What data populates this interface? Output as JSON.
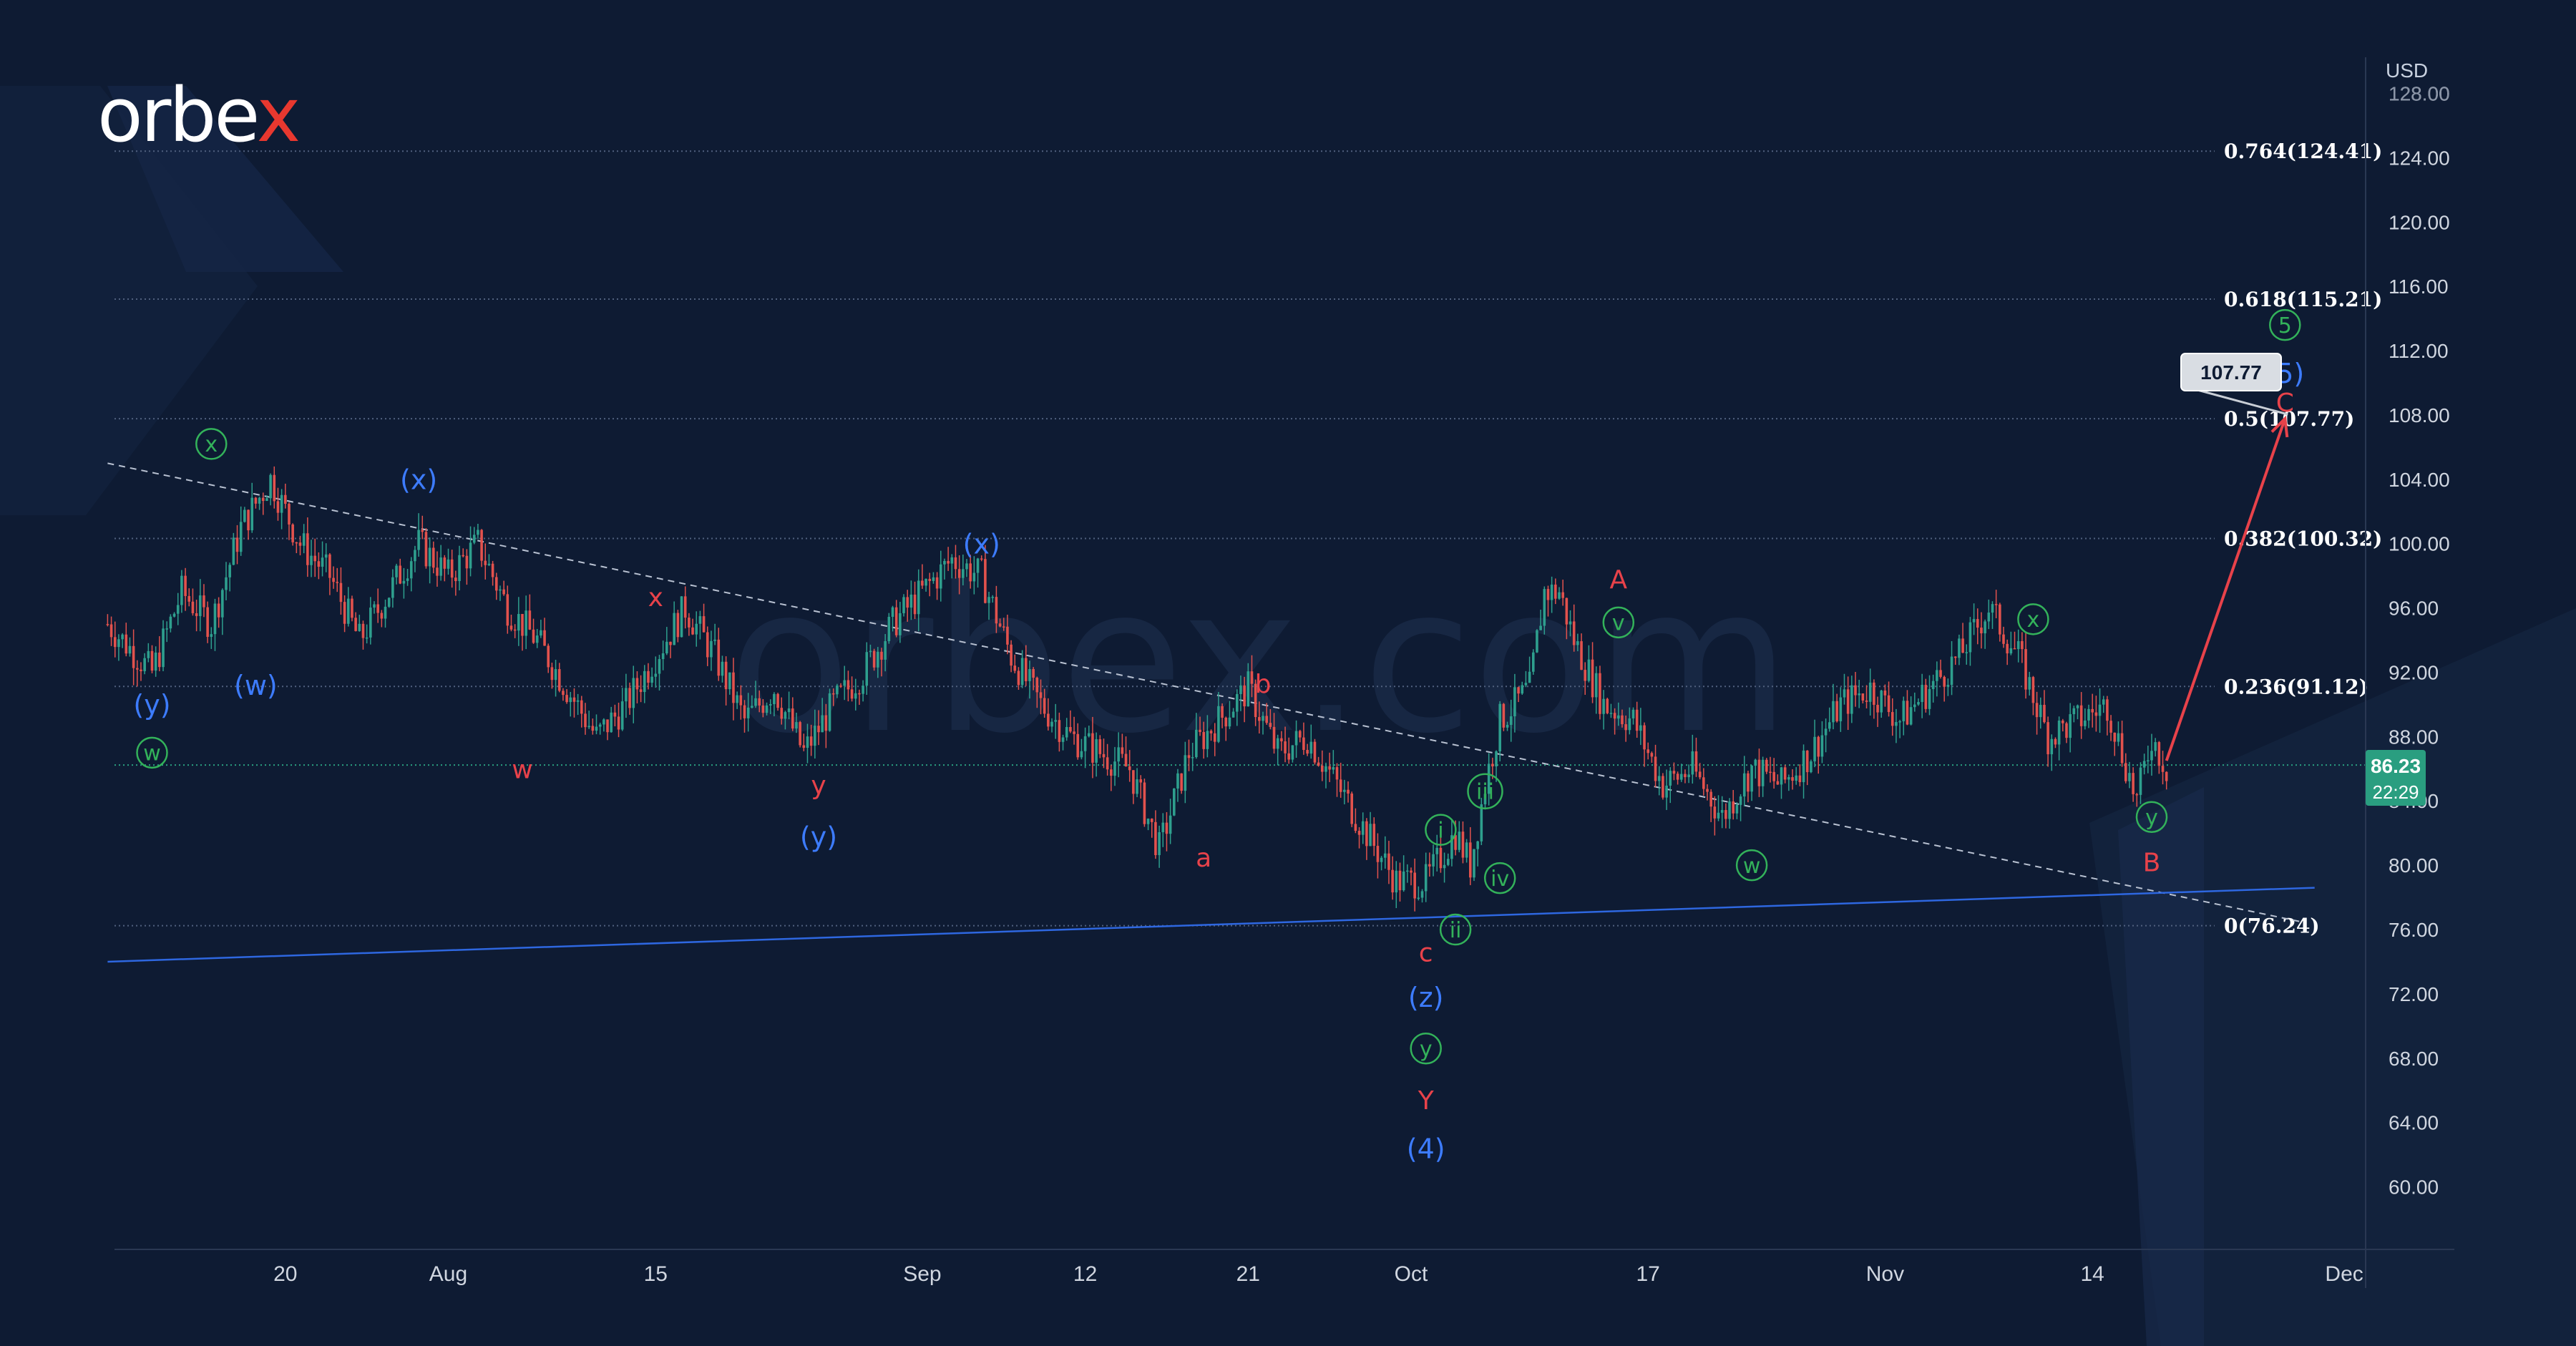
{
  "brand": {
    "name_main": "orbe",
    "name_accent": "x",
    "watermark": "orbex.com"
  },
  "axis": {
    "currency": "USD"
  },
  "price_tag": {
    "price": "86.23",
    "countdown": "22:29"
  },
  "target_tag": "107.77",
  "colors": {
    "background": "#0e1b33",
    "bull_candle": "#2e9f8e",
    "bear_candle": "#e2524d",
    "red_label": "#e8424a",
    "blue_label": "#3d7cff",
    "green_label": "#33b25a",
    "trendline": "#2e67e0",
    "forecast_arrow": "#e8424a",
    "price_tag_bg": "#2a9e80"
  },
  "chart_data": {
    "type": "candlestick",
    "title": "",
    "y_axis_unit": "USD",
    "ylim": [
      57,
      129
    ],
    "xlim_day": [
      0,
      145
    ],
    "y_ticks": [
      "60.00",
      "64.00",
      "68.00",
      "72.00",
      "76.00",
      "80.00",
      "84.00",
      "88.00",
      "92.00",
      "96.00",
      "100.00",
      "104.00",
      "108.00",
      "112.00",
      "116.00",
      "120.00",
      "124.00",
      "128.00"
    ],
    "x_ticks": [
      {
        "label": "20",
        "day": 4
      },
      {
        "label": "Aug",
        "day": 15
      },
      {
        "label": "15",
        "day": 29
      },
      {
        "label": "Sep",
        "day": 47
      },
      {
        "label": "12",
        "day": 58
      },
      {
        "label": "21",
        "day": 69
      },
      {
        "label": "Oct",
        "day": 80
      },
      {
        "label": "17",
        "day": 96
      },
      {
        "label": "Nov",
        "day": 112
      },
      {
        "label": "14",
        "day": 126
      },
      {
        "label": "Dec",
        "day": 143
      }
    ],
    "fib_levels": [
      {
        "label": "0.764(124.41)",
        "value": 124.41
      },
      {
        "label": "0.618(115.21)",
        "value": 115.21
      },
      {
        "label": "0.5(107.77)",
        "value": 107.77
      },
      {
        "label": "0.382(100.32)",
        "value": 100.32
      },
      {
        "label": "0.236(91.12)",
        "value": 91.12
      },
      {
        "label": "0(76.24)",
        "value": 76.24
      }
    ],
    "anchors": [
      [
        -8,
        95
      ],
      [
        -5,
        92
      ],
      [
        -3,
        97
      ],
      [
        -1,
        95
      ],
      [
        1,
        101
      ],
      [
        3,
        104
      ],
      [
        5,
        100
      ],
      [
        7,
        98
      ],
      [
        9,
        94
      ],
      [
        11,
        97
      ],
      [
        13,
        100
      ],
      [
        15,
        98
      ],
      [
        17,
        100
      ],
      [
        19,
        96
      ],
      [
        21,
        94
      ],
      [
        23,
        91
      ],
      [
        25,
        88
      ],
      [
        27,
        90
      ],
      [
        29,
        93
      ],
      [
        31,
        96
      ],
      [
        33,
        93
      ],
      [
        35,
        89
      ],
      [
        37,
        91
      ],
      [
        39,
        87
      ],
      [
        41,
        90
      ],
      [
        43,
        92
      ],
      [
        45,
        95
      ],
      [
        47,
        97
      ],
      [
        49,
        99
      ],
      [
        51,
        98
      ],
      [
        53,
        93
      ],
      [
        55,
        90
      ],
      [
        57,
        88
      ],
      [
        59,
        87
      ],
      [
        61,
        86
      ],
      [
        63,
        81
      ],
      [
        65,
        87
      ],
      [
        67,
        89
      ],
      [
        69,
        91
      ],
      [
        71,
        87
      ],
      [
        73,
        88
      ],
      [
        75,
        85
      ],
      [
        77,
        82
      ],
      [
        79,
        79
      ],
      [
        81,
        79
      ],
      [
        83,
        82
      ],
      [
        84,
        80
      ],
      [
        85,
        85
      ],
      [
        86,
        89
      ],
      [
        88,
        91
      ],
      [
        89,
        97
      ],
      [
        90,
        97
      ],
      [
        91,
        94
      ],
      [
        93,
        90
      ],
      [
        95,
        89
      ],
      [
        97,
        85
      ],
      [
        99,
        86
      ],
      [
        101,
        83
      ],
      [
        103,
        86
      ],
      [
        105,
        85
      ],
      [
        107,
        87
      ],
      [
        109,
        90
      ],
      [
        111,
        91
      ],
      [
        113,
        89
      ],
      [
        115,
        91
      ],
      [
        117,
        93
      ],
      [
        119,
        96
      ],
      [
        121,
        93
      ],
      [
        123,
        88
      ],
      [
        125,
        89
      ],
      [
        127,
        90
      ],
      [
        129,
        84
      ],
      [
        130,
        88
      ],
      [
        131,
        86
      ]
    ],
    "trendlines": [
      {
        "name": "upper-dashed",
        "from": {
          "day": -8,
          "price": 105
        },
        "to": {
          "day": 140,
          "price": 76.5
        },
        "style": "dashed"
      },
      {
        "name": "lower-solid",
        "from": {
          "day": -8,
          "price": 74.0
        },
        "to": {
          "day": 141,
          "price": 78.6
        },
        "style": "solid"
      }
    ],
    "forecast": {
      "from": {
        "day": 131,
        "price": 86.5
      },
      "to": {
        "day": 139,
        "price": 107.77
      }
    },
    "wave_labels": [
      {
        "text": "x",
        "day": -1,
        "price": 106.2,
        "color": "green",
        "circle": true
      },
      {
        "text": "(y)",
        "day": -5,
        "price": 90.0,
        "color": "blue",
        "circle": false
      },
      {
        "text": "w",
        "day": -5,
        "price": 87.0,
        "color": "green",
        "circle": true
      },
      {
        "text": "(w)",
        "day": 2,
        "price": 91.2,
        "color": "blue",
        "circle": false
      },
      {
        "text": "(x)",
        "day": 13,
        "price": 104.0,
        "color": "blue",
        "circle": false
      },
      {
        "text": "w",
        "day": 20,
        "price": 86.0,
        "color": "red",
        "circle": false
      },
      {
        "text": "x",
        "day": 29,
        "price": 96.7,
        "color": "red",
        "circle": false
      },
      {
        "text": "y",
        "day": 40,
        "price": 85.0,
        "color": "red",
        "circle": false
      },
      {
        "text": "(y)",
        "day": 40,
        "price": 81.8,
        "color": "blue",
        "circle": false
      },
      {
        "text": "(x)",
        "day": 51,
        "price": 100.0,
        "color": "blue",
        "circle": false
      },
      {
        "text": "b",
        "day": 70,
        "price": 91.3,
        "color": "red",
        "circle": false
      },
      {
        "text": "a",
        "day": 66,
        "price": 80.5,
        "color": "red",
        "circle": false
      },
      {
        "text": "i",
        "day": 82,
        "price": 82.2,
        "color": "green",
        "circle": true
      },
      {
        "text": "iii",
        "day": 85,
        "price": 84.6,
        "color": "green",
        "circle": true
      },
      {
        "text": "iv",
        "day": 86,
        "price": 79.2,
        "color": "green",
        "circle": true
      },
      {
        "text": "ii",
        "day": 83,
        "price": 76.0,
        "color": "green",
        "circle": true
      },
      {
        "text": "c",
        "day": 81,
        "price": 74.6,
        "color": "red",
        "circle": false
      },
      {
        "text": "(z)",
        "day": 81,
        "price": 71.8,
        "color": "blue",
        "circle": false
      },
      {
        "text": "y",
        "day": 81,
        "price": 68.6,
        "color": "green",
        "circle": true
      },
      {
        "text": "Y",
        "day": 81,
        "price": 65.4,
        "color": "red",
        "circle": false
      },
      {
        "text": "(4)",
        "day": 81,
        "price": 62.4,
        "color": "blue",
        "circle": false
      },
      {
        "text": "A",
        "day": 94,
        "price": 97.8,
        "color": "red",
        "circle": false
      },
      {
        "text": "v",
        "day": 94,
        "price": 95.1,
        "color": "green",
        "circle": true
      },
      {
        "text": "w",
        "day": 103,
        "price": 80.0,
        "color": "green",
        "circle": true
      },
      {
        "text": "x",
        "day": 122,
        "price": 95.3,
        "color": "green",
        "circle": true
      },
      {
        "text": "y",
        "day": 130,
        "price": 83.0,
        "color": "green",
        "circle": true
      },
      {
        "text": "B",
        "day": 130,
        "price": 80.2,
        "color": "red",
        "circle": false
      },
      {
        "text": "5",
        "day": 139,
        "price": 113.6,
        "color": "green",
        "circle": true
      },
      {
        "text": "(5)",
        "day": 139,
        "price": 110.6,
        "color": "blue",
        "circle": false
      },
      {
        "text": "C",
        "day": 139,
        "price": 108.8,
        "color": "red",
        "circle": false
      }
    ]
  }
}
